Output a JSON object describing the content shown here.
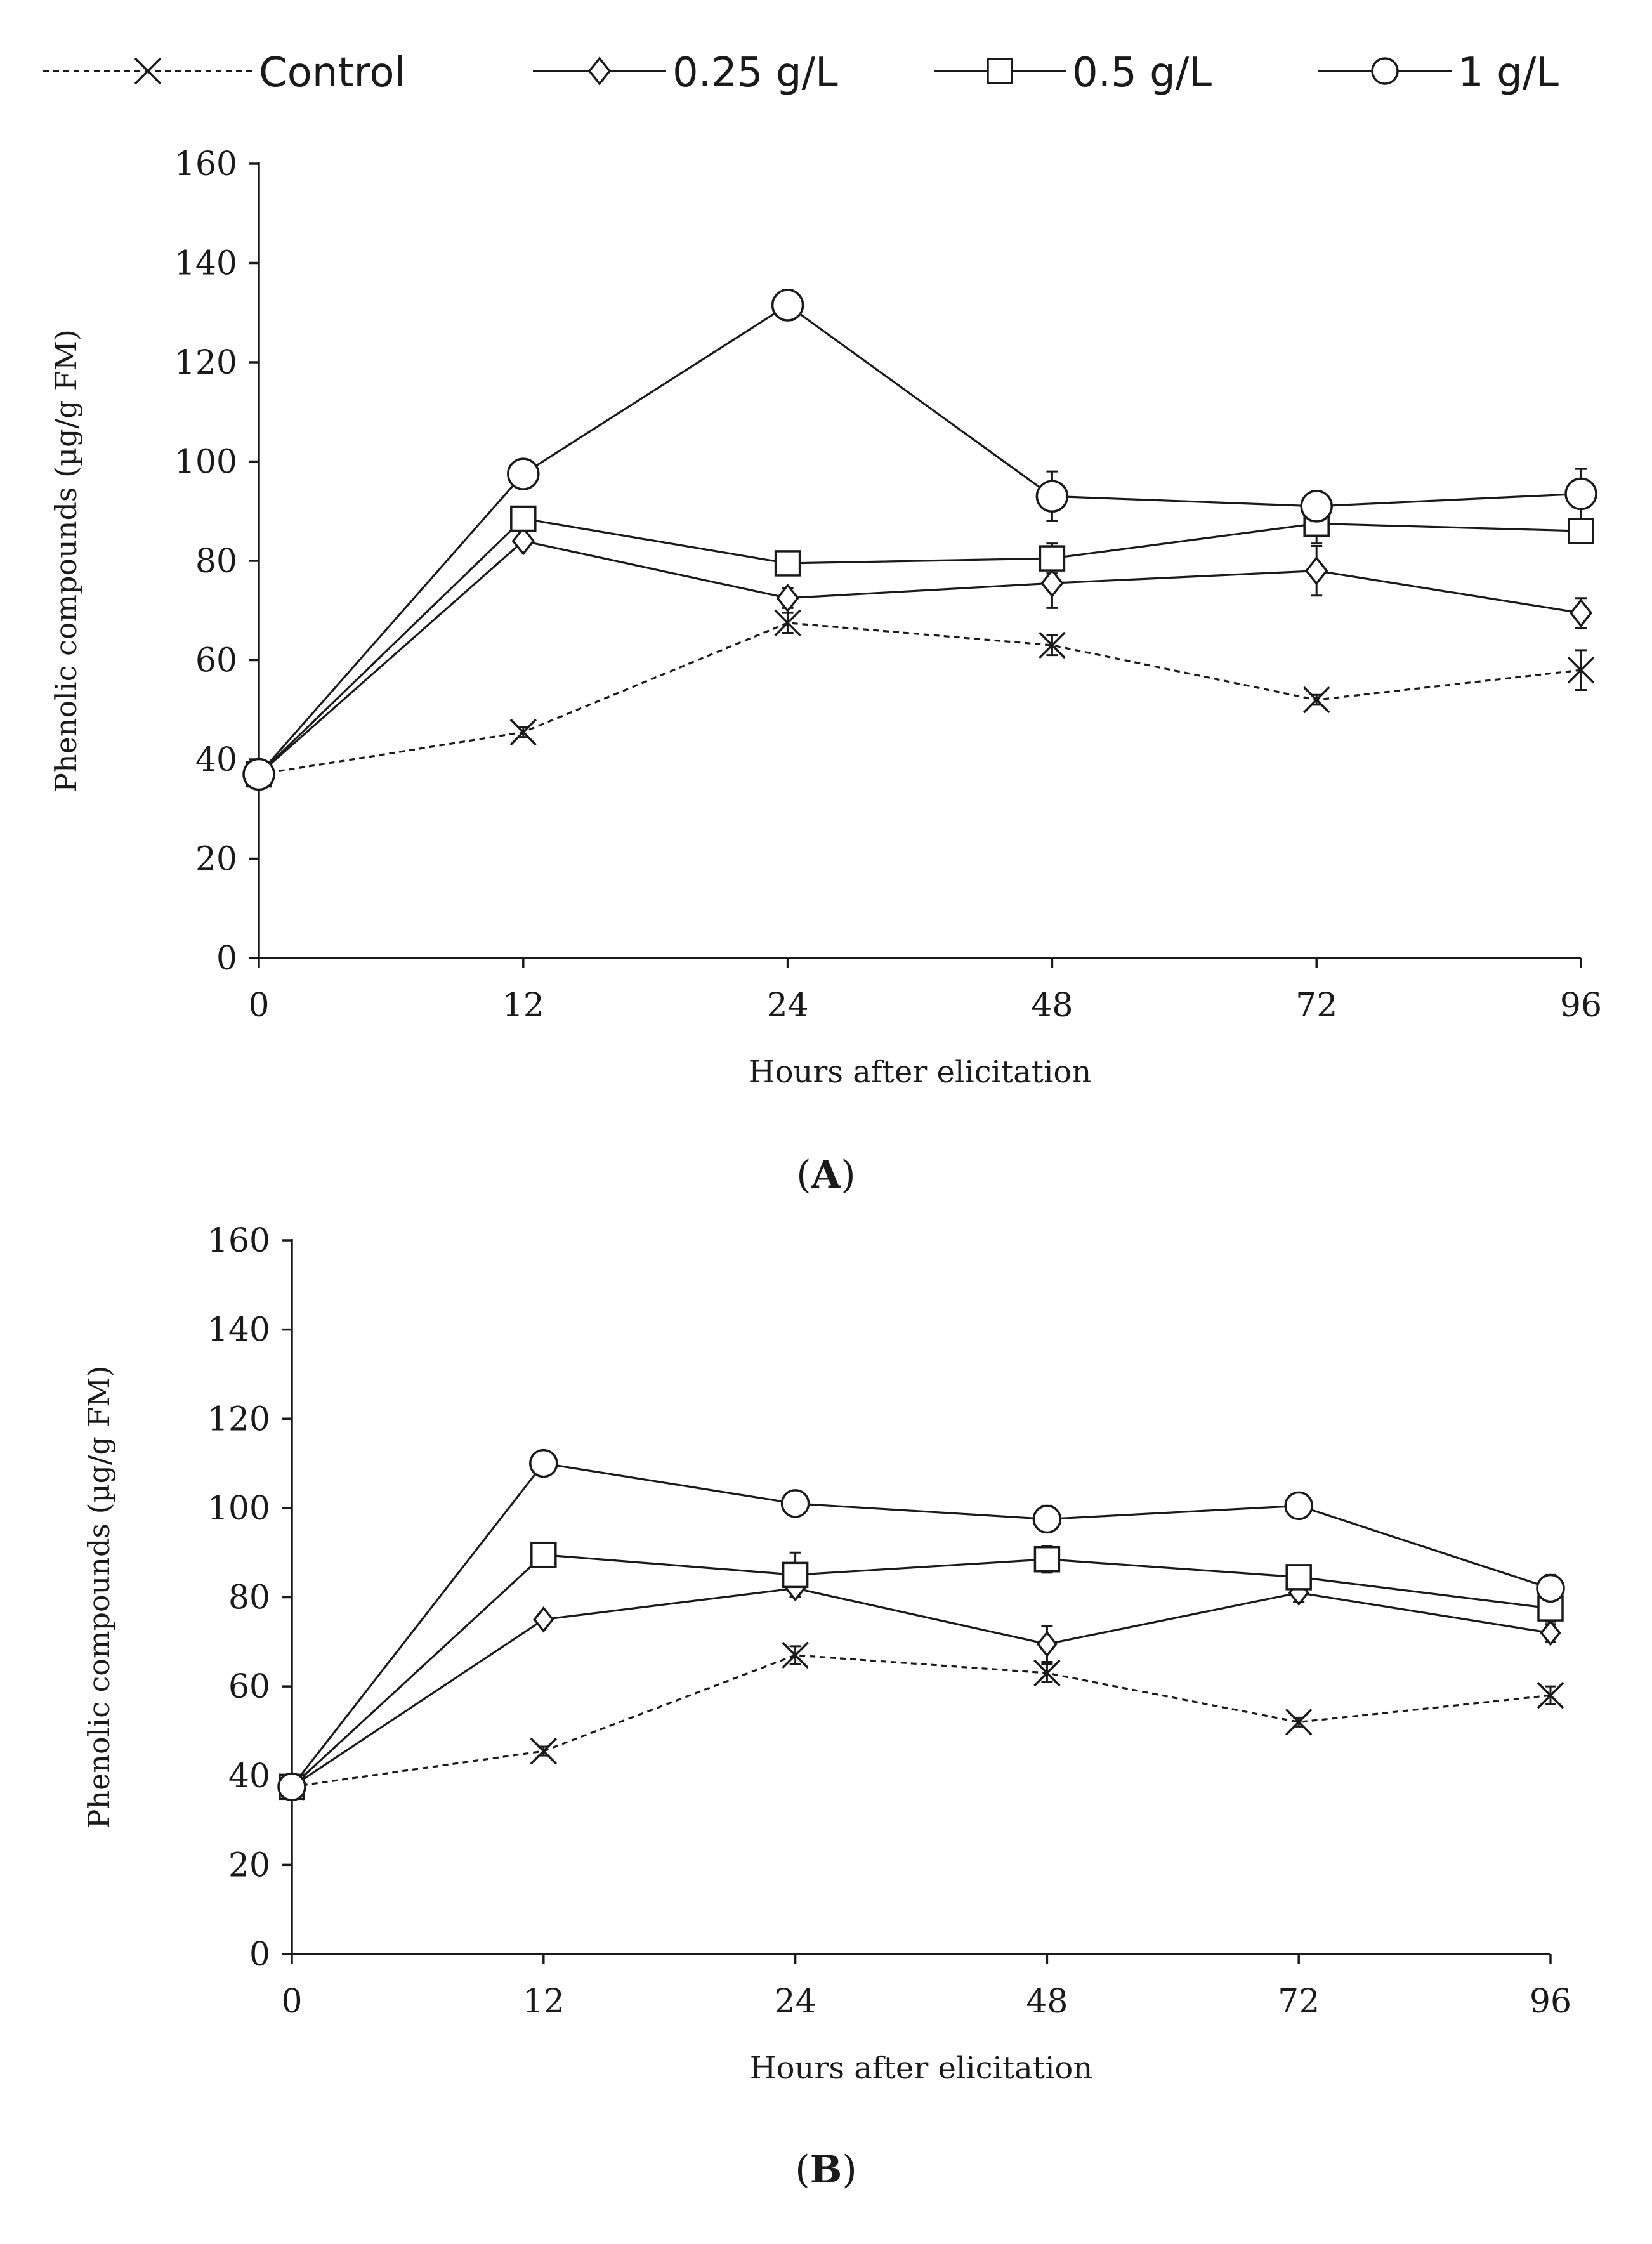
{
  "legend": [
    {
      "label": "Control",
      "marker": "x-marker",
      "dashed": true
    },
    {
      "label": "0.25 g/L",
      "marker": "diamond-marker",
      "dashed": false
    },
    {
      "label": "0.5 g/L",
      "marker": "square-marker",
      "dashed": false
    },
    {
      "label": "1 g/L",
      "marker": "circle-marker",
      "dashed": false
    }
  ],
  "colors": {
    "line": "#1a1a1a",
    "axis": "#1a1a1a",
    "background": "#ffffff"
  },
  "chart_data": [
    {
      "type": "line",
      "panel_label": "A",
      "caption_open": "(",
      "caption_close": ")",
      "categories": [
        "0",
        "12",
        "24",
        "48",
        "72",
        "96"
      ],
      "xlabel": "Hours after elicitation",
      "ylabel": "Phenolic compounds (µg/g FM)",
      "ylim": [
        0,
        160
      ],
      "yticks": [
        "0",
        "20",
        "40",
        "60",
        "80",
        "100",
        "120",
        "140",
        "160"
      ],
      "series": [
        {
          "name": "Control",
          "values": [
            37,
            45.5,
            67.5,
            63,
            52,
            58
          ],
          "errors": [
            0,
            1,
            2,
            2,
            1,
            4
          ]
        },
        {
          "name": "0.25 g/L",
          "values": [
            37,
            84,
            72.5,
            75.5,
            78,
            69.5
          ],
          "errors": [
            0,
            1,
            2,
            5,
            5,
            3
          ]
        },
        {
          "name": "0.5 g/L",
          "values": [
            37,
            88.5,
            79.5,
            80.5,
            87.5,
            86
          ],
          "errors": [
            0,
            2,
            2,
            3,
            4,
            2
          ]
        },
        {
          "name": "1 g/L",
          "values": [
            37,
            97.5,
            131.5,
            93,
            91,
            93.5
          ],
          "errors": [
            0,
            2,
            3,
            5,
            3,
            5
          ]
        }
      ]
    },
    {
      "type": "line",
      "panel_label": "B",
      "caption_open": "(",
      "caption_close": ")",
      "categories": [
        "0",
        "12",
        "24",
        "48",
        "72",
        "96"
      ],
      "xlabel": "Hours after elicitation",
      "ylabel": "Phenolic compounds (µg/g FM)",
      "ylim": [
        0,
        160
      ],
      "yticks": [
        "0",
        "20",
        "40",
        "60",
        "80",
        "100",
        "120",
        "140",
        "160"
      ],
      "series": [
        {
          "name": "Control",
          "values": [
            37.5,
            45.5,
            67,
            63,
            52,
            58
          ],
          "errors": [
            0,
            1,
            2,
            2,
            1,
            2
          ]
        },
        {
          "name": "0.25 g/L",
          "values": [
            37.5,
            75,
            82,
            69.5,
            81,
            72
          ],
          "errors": [
            0,
            1,
            2,
            4,
            2,
            2
          ]
        },
        {
          "name": "0.5 g/L",
          "values": [
            37.5,
            89.5,
            85,
            88.5,
            84.5,
            77.5
          ],
          "errors": [
            0,
            2,
            5,
            3,
            2,
            3
          ]
        },
        {
          "name": "1 g/L",
          "values": [
            37.5,
            110,
            101,
            97.5,
            100.5,
            82
          ],
          "errors": [
            0,
            2,
            2,
            3,
            2,
            3
          ]
        }
      ]
    }
  ]
}
